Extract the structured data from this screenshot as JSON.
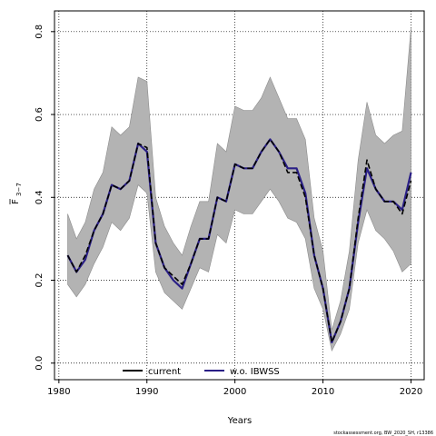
{
  "chart_data": {
    "type": "line",
    "title": "",
    "xlabel": "Years",
    "ylabel_main": "F",
    "ylabel_sub": "3−7",
    "xlim": [
      1979.5,
      2021.5
    ],
    "ylim": [
      -0.04,
      0.85
    ],
    "xticks": [
      1980,
      1990,
      2000,
      2010,
      2020
    ],
    "yticks": [
      0.0,
      0.2,
      0.4,
      0.6,
      0.8
    ],
    "grid": true,
    "legend_position": "bottom",
    "x": [
      1981,
      1982,
      1983,
      1984,
      1985,
      1986,
      1987,
      1988,
      1989,
      1990,
      1991,
      1992,
      1993,
      1994,
      1995,
      1996,
      1997,
      1998,
      1999,
      2000,
      2001,
      2002,
      2003,
      2004,
      2005,
      2006,
      2007,
      2008,
      2009,
      2010,
      2011,
      2012,
      2013,
      2014,
      2015,
      2016,
      2017,
      2018,
      2019,
      2020
    ],
    "band_upper": [
      0.36,
      0.3,
      0.34,
      0.42,
      0.46,
      0.57,
      0.55,
      0.57,
      0.69,
      0.68,
      0.4,
      0.33,
      0.29,
      0.26,
      0.33,
      0.39,
      0.39,
      0.53,
      0.51,
      0.62,
      0.61,
      0.61,
      0.64,
      0.69,
      0.64,
      0.59,
      0.59,
      0.54,
      0.35,
      0.27,
      0.08,
      0.15,
      0.27,
      0.49,
      0.63,
      0.55,
      0.53,
      0.55,
      0.56,
      0.81
    ],
    "band_lower": [
      0.19,
      0.16,
      0.19,
      0.24,
      0.28,
      0.34,
      0.32,
      0.35,
      0.43,
      0.41,
      0.22,
      0.17,
      0.15,
      0.13,
      0.18,
      0.23,
      0.22,
      0.31,
      0.29,
      0.37,
      0.36,
      0.36,
      0.39,
      0.42,
      0.39,
      0.35,
      0.34,
      0.3,
      0.18,
      0.13,
      0.03,
      0.07,
      0.13,
      0.29,
      0.37,
      0.32,
      0.3,
      0.27,
      0.22,
      0.24
    ],
    "series": [
      {
        "name": "current",
        "color": "#000000",
        "dash": "6,3",
        "values": [
          0.26,
          0.22,
          0.26,
          0.32,
          0.36,
          0.43,
          0.42,
          0.44,
          0.53,
          0.52,
          0.29,
          0.23,
          0.21,
          0.19,
          0.24,
          0.3,
          0.3,
          0.4,
          0.39,
          0.48,
          0.47,
          0.47,
          0.51,
          0.54,
          0.51,
          0.46,
          0.46,
          0.4,
          0.26,
          0.18,
          0.05,
          0.1,
          0.18,
          0.35,
          0.49,
          0.42,
          0.39,
          0.39,
          0.36,
          0.44
        ]
      },
      {
        "name": "w.o. IBWSS",
        "color": "#2a1f86",
        "dash": "",
        "values": [
          0.26,
          0.22,
          0.25,
          0.32,
          0.36,
          0.43,
          0.42,
          0.44,
          0.53,
          0.51,
          0.29,
          0.23,
          0.2,
          0.18,
          0.24,
          0.3,
          0.3,
          0.4,
          0.39,
          0.48,
          0.47,
          0.47,
          0.51,
          0.54,
          0.51,
          0.47,
          0.47,
          0.41,
          0.26,
          0.18,
          0.05,
          0.1,
          0.18,
          0.34,
          0.47,
          0.42,
          0.39,
          0.39,
          0.37,
          0.46
        ]
      }
    ]
  },
  "footnote": "stockassessment.org, BW_2020_SH, r13386"
}
